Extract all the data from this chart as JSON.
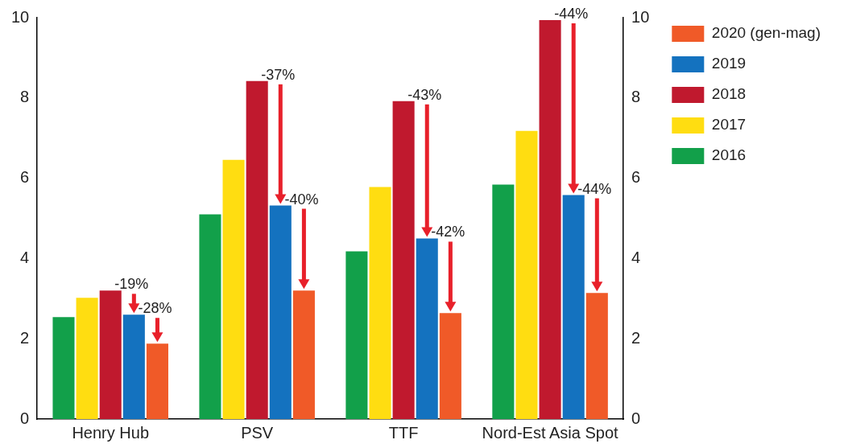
{
  "chart_data": {
    "type": "bar",
    "categories": [
      "Henry Hub",
      "PSV",
      "TTF",
      "Nord-Est Asia Spot"
    ],
    "series": [
      {
        "name": "2016",
        "color": "#12a04a",
        "values": [
          2.54,
          5.1,
          4.18,
          5.84
        ]
      },
      {
        "name": "2017",
        "color": "#ffdd11",
        "values": [
          3.02,
          6.46,
          5.78,
          7.18
        ]
      },
      {
        "name": "2018",
        "color": "#c0192e",
        "values": [
          3.2,
          8.42,
          7.92,
          9.94
        ]
      },
      {
        "name": "2019",
        "color": "#1472bf",
        "values": [
          2.6,
          5.32,
          4.5,
          5.58
        ]
      },
      {
        "name": "2020 (gen-mag)",
        "color": "#f05a28",
        "values": [
          1.88,
          3.2,
          2.64,
          3.14
        ]
      }
    ],
    "ylim": [
      0,
      10
    ],
    "yticks": [
      0,
      2,
      4,
      6,
      8,
      10
    ],
    "y2lim": [
      0,
      10
    ],
    "y2ticks": [
      0,
      2,
      4,
      6,
      8,
      10
    ],
    "grid": false,
    "legend": "right",
    "annotations": [
      "-19%",
      "-28%",
      "-37%",
      "-40%",
      "-43%",
      "-42%",
      "-44%",
      "-44%"
    ]
  }
}
